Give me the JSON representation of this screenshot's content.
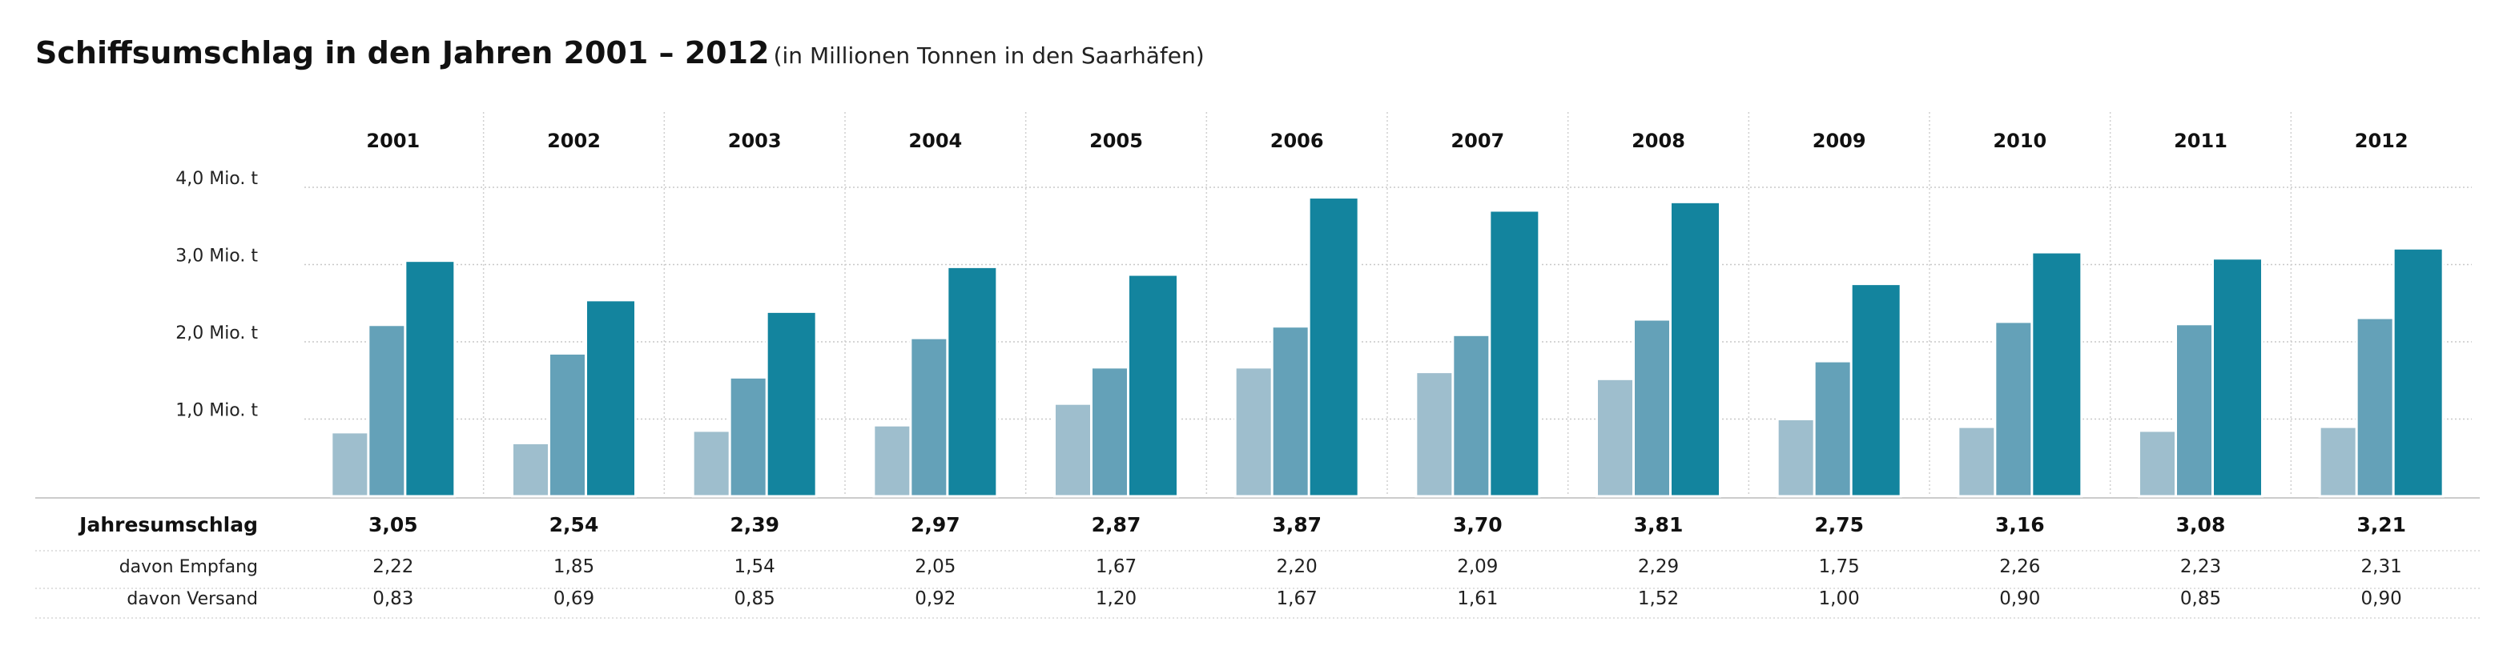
{
  "header": {
    "title": "Schiffsumschlag in den Jahren 2001 – 2012",
    "subtitle": "(in Millionen Tonnen in den Saarhäfen)"
  },
  "chart_data": {
    "type": "bar",
    "categories": [
      "2001",
      "2002",
      "2003",
      "2004",
      "2005",
      "2006",
      "2007",
      "2008",
      "2009",
      "2010",
      "2011",
      "2012"
    ],
    "series": [
      {
        "name": "davon Versand",
        "values": [
          0.83,
          0.69,
          0.85,
          0.92,
          1.2,
          1.67,
          1.61,
          1.52,
          1.0,
          0.9,
          0.85,
          0.9
        ],
        "color": "#9ebecd"
      },
      {
        "name": "davon Empfang",
        "values": [
          2.22,
          1.85,
          1.54,
          2.05,
          1.67,
          2.2,
          2.09,
          2.29,
          1.75,
          2.26,
          2.23,
          2.31
        ],
        "color": "#64a1b8"
      },
      {
        "name": "Jahresumschlag",
        "values": [
          3.05,
          2.54,
          2.39,
          2.97,
          2.87,
          3.87,
          3.7,
          3.81,
          2.75,
          3.16,
          3.08,
          3.21
        ],
        "color": "#13849e"
      }
    ],
    "ylim": [
      0,
      4
    ],
    "yticks": [
      {
        "value": 1,
        "label": "1,0 Mio. t"
      },
      {
        "value": 2,
        "label": "2,0 Mio. t"
      },
      {
        "value": 3,
        "label": "3,0 Mio. t"
      },
      {
        "value": 4,
        "label": "4,0 Mio. t"
      }
    ],
    "grid": true
  },
  "table": {
    "rows": [
      {
        "label": "Jahresumschlag",
        "bold": true,
        "values": [
          "3,05",
          "2,54",
          "2,39",
          "2,97",
          "2,87",
          "3,87",
          "3,70",
          "3,81",
          "2,75",
          "3,16",
          "3,08",
          "3,21"
        ]
      },
      {
        "label": "davon Empfang",
        "bold": false,
        "values": [
          "2,22",
          "1,85",
          "1,54",
          "2,05",
          "1,67",
          "2,20",
          "2,09",
          "2,29",
          "1,75",
          "2,26",
          "2,23",
          "2,31"
        ]
      },
      {
        "label": "davon Versand",
        "bold": false,
        "values": [
          "0,83",
          "0,69",
          "0,85",
          "0,92",
          "1,20",
          "1,67",
          "1,61",
          "1,52",
          "1,00",
          "0,90",
          "0,85",
          "0,90"
        ]
      }
    ]
  }
}
